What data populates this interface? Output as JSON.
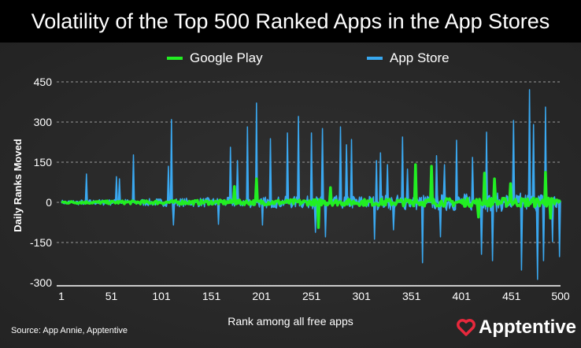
{
  "chart_data": {
    "type": "area",
    "title": "Volatility of the Top 500 Ranked Apps in the App Stores",
    "xlabel": "Rank among all free apps",
    "ylabel": "Daily Ranks Moved",
    "xlim": [
      1,
      500
    ],
    "ylim": [
      -300,
      450
    ],
    "x_ticks": [
      1,
      51,
      101,
      151,
      201,
      251,
      301,
      351,
      401,
      451,
      500
    ],
    "y_ticks": [
      450,
      300,
      150,
      0,
      -150,
      -300
    ],
    "grid": "horizontal dashed",
    "legend_placement": "top",
    "series": [
      {
        "name": "Google Play",
        "color": "#22ee22",
        "spikes": [
          [
            174,
            59
          ],
          [
            196,
            88
          ],
          [
            258,
            -94
          ],
          [
            270,
            55
          ],
          [
            355,
            141
          ],
          [
            371,
            135
          ],
          [
            418,
            -55
          ],
          [
            424,
            109
          ],
          [
            434,
            88
          ],
          [
            450,
            70
          ],
          [
            485,
            112
          ],
          [
            490,
            -59
          ]
        ]
      },
      {
        "name": "App Store",
        "color": "#38a8f0",
        "spikes": [
          [
            26,
            106
          ],
          [
            56,
            96
          ],
          [
            59,
            88
          ],
          [
            73,
            177
          ],
          [
            108,
            135
          ],
          [
            111,
            309
          ],
          [
            113,
            -85
          ],
          [
            158,
            -82
          ],
          [
            170,
            206
          ],
          [
            177,
            156
          ],
          [
            187,
            282
          ],
          [
            196,
            371
          ],
          [
            202,
            -85
          ],
          [
            210,
            238
          ],
          [
            227,
            259
          ],
          [
            238,
            321
          ],
          [
            251,
            259
          ],
          [
            255,
            -112
          ],
          [
            262,
            276
          ],
          [
            265,
            -129
          ],
          [
            280,
            282
          ],
          [
            286,
            215
          ],
          [
            291,
            235
          ],
          [
            314,
            -138
          ],
          [
            316,
            156
          ],
          [
            320,
            185
          ],
          [
            327,
            141
          ],
          [
            333,
            -103
          ],
          [
            342,
            244
          ],
          [
            347,
            124
          ],
          [
            362,
            -226
          ],
          [
            376,
            174
          ],
          [
            380,
            -129
          ],
          [
            384,
            141
          ],
          [
            396,
            232
          ],
          [
            412,
            168
          ],
          [
            421,
            -194
          ],
          [
            426,
            262
          ],
          [
            432,
            -218
          ],
          [
            453,
            306
          ],
          [
            461,
            -253
          ],
          [
            469,
            421
          ],
          [
            473,
            291
          ],
          [
            477,
            -288
          ],
          [
            483,
            -218
          ],
          [
            485,
            356
          ],
          [
            492,
            -147
          ],
          [
            499,
            -203
          ]
        ]
      }
    ]
  },
  "source": "Source: App Annie, Apptentive",
  "logo": "Apptentive"
}
